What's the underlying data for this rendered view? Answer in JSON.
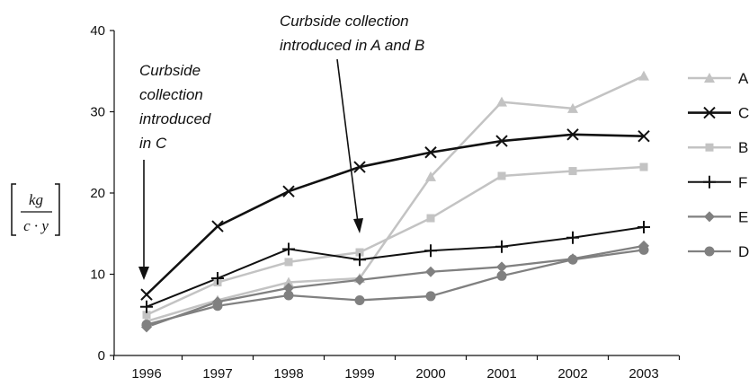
{
  "chart_data": {
    "type": "line",
    "x": [
      "1996",
      "1997",
      "1998",
      "1999",
      "2000",
      "2001",
      "2002",
      "2003"
    ],
    "ylim": [
      0,
      40
    ],
    "yticks": [
      "0",
      "10",
      "20",
      "30",
      "40"
    ],
    "ylabel": {
      "numerator": "kg",
      "denominator": "c · y"
    },
    "grid": false,
    "legend_position": "right",
    "series": [
      {
        "name": "A",
        "marker": "triangle",
        "color": "#c3c3c3",
        "width": 2.5,
        "values": [
          4.2,
          6.8,
          9.0,
          9.5,
          22.0,
          31.2,
          30.4,
          34.4
        ]
      },
      {
        "name": "C",
        "marker": "x",
        "color": "#111111",
        "width": 2.6,
        "values": [
          7.5,
          15.9,
          20.2,
          23.2,
          25.0,
          26.4,
          27.2,
          27.0
        ]
      },
      {
        "name": "B",
        "marker": "square",
        "color": "#c3c3c3",
        "width": 2.5,
        "values": [
          5.0,
          9.0,
          11.5,
          12.7,
          16.9,
          22.1,
          22.7,
          23.2
        ]
      },
      {
        "name": "F",
        "marker": "plus",
        "color": "#111111",
        "width": 2.0,
        "values": [
          6.0,
          9.5,
          13.1,
          11.8,
          12.9,
          13.4,
          14.5,
          15.8
        ]
      },
      {
        "name": "E",
        "marker": "diamond",
        "color": "#808080",
        "width": 2.3,
        "values": [
          3.5,
          6.6,
          8.3,
          9.3,
          10.3,
          10.9,
          11.9,
          13.5
        ]
      },
      {
        "name": "D",
        "marker": "circle",
        "color": "#808080",
        "width": 2.3,
        "values": [
          3.8,
          6.1,
          7.4,
          6.8,
          7.3,
          9.8,
          11.8,
          13.0
        ]
      }
    ],
    "annotations": [
      {
        "lines": [
          "Curbside collection",
          "introduced in A and B"
        ],
        "points_to": "1999"
      },
      {
        "lines": [
          "Curbside",
          "collection",
          "introduced",
          "in C"
        ],
        "points_to": "1996"
      }
    ]
  }
}
